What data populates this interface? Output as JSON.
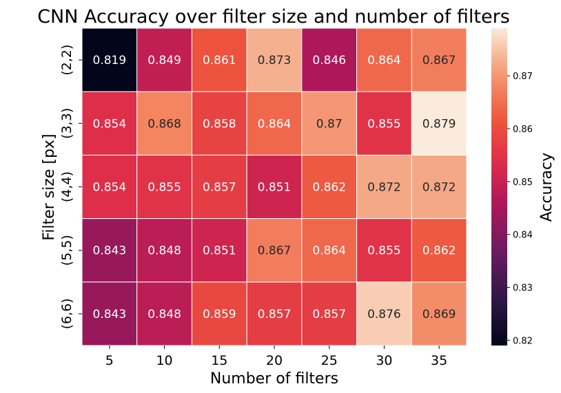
{
  "chart_data": {
    "type": "heatmap",
    "title": "CNN Accuracy over filter size and number of filters",
    "xlabel": "Number of filters",
    "ylabel": "Filter size [px]",
    "x_categories": [
      "5",
      "10",
      "15",
      "20",
      "25",
      "30",
      "35"
    ],
    "y_categories": [
      "(2,2)",
      "(3,3)",
      "(4,4)",
      "(5,5)",
      "(6,6)"
    ],
    "values": [
      [
        0.819,
        0.849,
        0.861,
        0.873,
        0.846,
        0.864,
        0.867
      ],
      [
        0.854,
        0.868,
        0.858,
        0.864,
        0.87,
        0.855,
        0.879
      ],
      [
        0.854,
        0.855,
        0.857,
        0.851,
        0.862,
        0.872,
        0.872
      ],
      [
        0.843,
        0.848,
        0.851,
        0.867,
        0.864,
        0.855,
        0.862
      ],
      [
        0.843,
        0.848,
        0.859,
        0.857,
        0.857,
        0.876,
        0.869
      ]
    ],
    "value_labels": [
      [
        "0.819",
        "0.849",
        "0.861",
        "0.873",
        "0.846",
        "0.864",
        "0.867"
      ],
      [
        "0.854",
        "0.868",
        "0.858",
        "0.864",
        "0.87",
        "0.855",
        "0.879"
      ],
      [
        "0.854",
        "0.855",
        "0.857",
        "0.851",
        "0.862",
        "0.872",
        "0.872"
      ],
      [
        "0.843",
        "0.848",
        "0.851",
        "0.867",
        "0.864",
        "0.855",
        "0.862"
      ],
      [
        "0.843",
        "0.848",
        "0.859",
        "0.857",
        "0.857",
        "0.876",
        "0.869"
      ]
    ],
    "colorbar": {
      "label": "Accuracy",
      "range": [
        0.819,
        0.879
      ],
      "ticks": [
        "0.82",
        "0.83",
        "0.84",
        "0.85",
        "0.86",
        "0.87"
      ],
      "colormap": "rocket"
    },
    "grid": true
  }
}
